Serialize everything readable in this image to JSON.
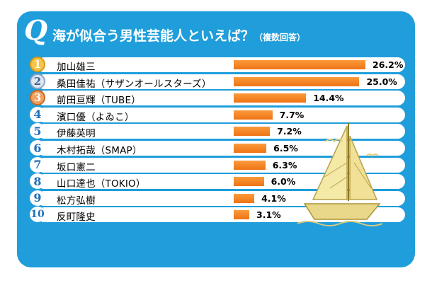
{
  "title": {
    "q": "Q",
    "main": "海が似合う男性芸能人といえば？",
    "note": "（複数回答）"
  },
  "colors": {
    "panel": "#1f9edb",
    "bar": "#f28020",
    "row_bg": "#ffffff"
  },
  "chart_data": {
    "type": "bar",
    "orientation": "horizontal",
    "title": "海が似合う男性芸能人といえば？（複数回答）",
    "categories": [
      "加山雄三",
      "桑田佳祐（サザンオールスターズ）",
      "前田亘輝（TUBE）",
      "濱口優（よゐこ）",
      "伊藤英明",
      "木村拓哉（SMAP）",
      "坂口憲二",
      "山口達也（TOKIO）",
      "松方弘樹",
      "反町隆史"
    ],
    "ranks": [
      "1",
      "2",
      "3",
      "4",
      "5",
      "6",
      "7",
      "8",
      "9",
      "10"
    ],
    "values": [
      26.2,
      25.0,
      14.4,
      7.7,
      7.2,
      6.5,
      6.3,
      6.0,
      4.1,
      3.1
    ],
    "value_labels": [
      "26.2%",
      "25.0%",
      "14.4%",
      "7.7%",
      "7.2%",
      "6.5%",
      "6.3%",
      "6.0%",
      "4.1%",
      "3.1%"
    ],
    "xlim": [
      0,
      26.2
    ],
    "grid": false
  }
}
